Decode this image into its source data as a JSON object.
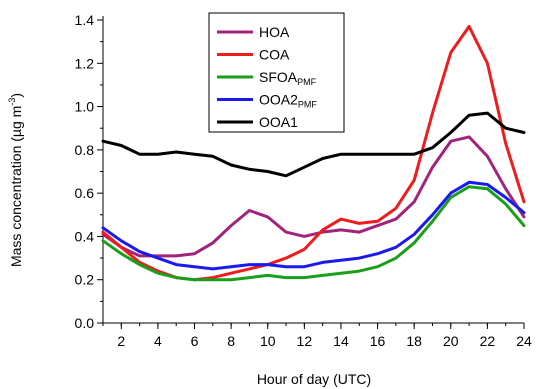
{
  "chart_data": {
    "type": "line",
    "xlabel": "Hour of day (UTC)",
    "ylabel": "Mass concentration (µg m",
    "ylabel_sup": "-3",
    "ylabel_close": ")",
    "xlim": [
      1,
      24
    ],
    "ylim": [
      0,
      1.4
    ],
    "xticks": [
      2,
      4,
      6,
      8,
      10,
      12,
      14,
      16,
      18,
      20,
      22,
      24
    ],
    "xtick_labels": [
      "2",
      "4",
      "6",
      "8",
      "10",
      "12",
      "14",
      "16",
      "18",
      "20",
      "22",
      "24"
    ],
    "yticks": [
      0.0,
      0.2,
      0.4,
      0.6,
      0.8,
      1.0,
      1.2,
      1.4
    ],
    "ytick_labels": [
      "0.0",
      "0.2",
      "0.4",
      "0.6",
      "0.8",
      "1.0",
      "1.2",
      "1.4"
    ],
    "legend_position": "top-center",
    "x": [
      1,
      2,
      3,
      4,
      5,
      6,
      7,
      8,
      9,
      10,
      11,
      12,
      13,
      14,
      15,
      16,
      17,
      18,
      19,
      20,
      21,
      22,
      23,
      24
    ],
    "series": [
      {
        "name": "HOA",
        "sub": "",
        "color": "#a0237c",
        "values": [
          0.41,
          0.35,
          0.31,
          0.31,
          0.31,
          0.32,
          0.37,
          0.45,
          0.52,
          0.49,
          0.42,
          0.4,
          0.42,
          0.43,
          0.42,
          0.45,
          0.48,
          0.56,
          0.72,
          0.84,
          0.86,
          0.77,
          0.62,
          0.49
        ]
      },
      {
        "name": "COA",
        "sub": "",
        "color": "#ee1c1c",
        "values": [
          0.42,
          0.35,
          0.28,
          0.24,
          0.21,
          0.2,
          0.21,
          0.23,
          0.25,
          0.27,
          0.3,
          0.34,
          0.43,
          0.48,
          0.46,
          0.47,
          0.53,
          0.66,
          0.97,
          1.25,
          1.37,
          1.2,
          0.83,
          0.56
        ]
      },
      {
        "name": "SFOA",
        "sub": "PMF",
        "color": "#1a9f1a",
        "values": [
          0.38,
          0.32,
          0.27,
          0.23,
          0.21,
          0.2,
          0.2,
          0.2,
          0.21,
          0.22,
          0.21,
          0.21,
          0.22,
          0.23,
          0.24,
          0.26,
          0.3,
          0.37,
          0.47,
          0.58,
          0.63,
          0.62,
          0.55,
          0.45
        ]
      },
      {
        "name": "OOA2",
        "sub": "PMF",
        "color": "#1a1aee",
        "values": [
          0.44,
          0.38,
          0.33,
          0.3,
          0.27,
          0.26,
          0.25,
          0.26,
          0.27,
          0.27,
          0.26,
          0.26,
          0.28,
          0.29,
          0.3,
          0.32,
          0.35,
          0.41,
          0.5,
          0.6,
          0.65,
          0.64,
          0.58,
          0.51
        ]
      },
      {
        "name": "OOA1",
        "sub": "",
        "color": "#000000",
        "values": [
          0.84,
          0.82,
          0.78,
          0.78,
          0.79,
          0.78,
          0.77,
          0.73,
          0.71,
          0.7,
          0.68,
          0.72,
          0.76,
          0.78,
          0.78,
          0.78,
          0.78,
          0.78,
          0.81,
          0.88,
          0.96,
          0.97,
          0.9,
          0.88
        ]
      }
    ]
  }
}
